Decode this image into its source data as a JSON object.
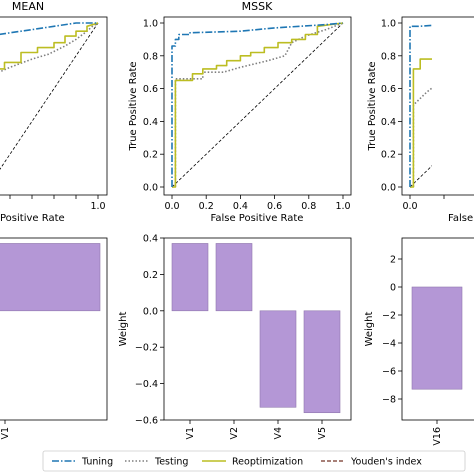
{
  "colors": {
    "tuning": "#1f77b4",
    "testing": "#7f7f7f",
    "reoptimization": "#bcbd22",
    "youden": "#8c564b",
    "bar": "#b497d6",
    "bar_edge": "#8f77ad",
    "chance": "#000000"
  },
  "legend": {
    "placement": "bottom-center",
    "entries": [
      {
        "label": "Tuning",
        "style": "dashdot",
        "color": "#1f77b4"
      },
      {
        "label": "Testing",
        "style": "dotted",
        "color": "#7f7f7f"
      },
      {
        "label": "Reoptimization",
        "style": "solid",
        "color": "#bcbd22"
      },
      {
        "label": "Youden's index",
        "style": "dashed",
        "color": "#8c564b"
      }
    ]
  },
  "chart_data": [
    {
      "type": "line",
      "title": "MEAN",
      "xlabel": "False Positive Rate",
      "ylabel": "",
      "xlim": [
        0,
        1
      ],
      "ylim": [
        0,
        1
      ],
      "xticks": [
        "0.0",
        "0.2",
        "0.4",
        "0.6",
        "0.8",
        "1.0"
      ],
      "visible_xtick_labels": [
        "1.0"
      ],
      "visible_xlabel": "Positive Rate",
      "yticks": [],
      "series": [
        {
          "name": "Tuning",
          "x": [
            0.0,
            0.01,
            0.02,
            0.06,
            0.1,
            0.2,
            0.4,
            0.6,
            0.8,
            0.9,
            1.0
          ],
          "y": [
            0.9,
            0.9,
            0.91,
            0.92,
            0.93,
            0.94,
            0.96,
            0.98,
            1.0,
            1.0,
            1.0
          ]
        },
        {
          "name": "Testing",
          "x": [
            0.0,
            0.1,
            0.2,
            0.4,
            0.55,
            0.7,
            0.8,
            0.9,
            0.95,
            1.0
          ],
          "y": [
            0.68,
            0.7,
            0.73,
            0.78,
            0.81,
            0.86,
            0.9,
            0.95,
            0.98,
            1.0
          ]
        },
        {
          "name": "Reoptimization",
          "x": [
            0.0,
            0.06,
            0.06,
            0.15,
            0.15,
            0.3,
            0.3,
            0.45,
            0.45,
            0.6,
            0.6,
            0.7,
            0.7,
            0.8,
            0.8,
            0.9,
            0.9,
            1.0
          ],
          "y": [
            0.7,
            0.7,
            0.72,
            0.72,
            0.76,
            0.76,
            0.82,
            0.82,
            0.85,
            0.85,
            0.88,
            0.88,
            0.92,
            0.92,
            0.95,
            0.95,
            0.98,
            1.0
          ]
        },
        {
          "name": "Chance",
          "x": [
            0,
            1
          ],
          "y": [
            0,
            1
          ]
        }
      ]
    },
    {
      "type": "line",
      "title": "MSSK",
      "xlabel": "False Positive Rate",
      "ylabel": "True Positive Rate",
      "xlim": [
        0,
        1
      ],
      "ylim": [
        0,
        1
      ],
      "xticks": [
        "0.0",
        "0.2",
        "0.4",
        "0.6",
        "0.8",
        "1.0"
      ],
      "yticks": [
        "0.0",
        "0.2",
        "0.4",
        "0.6",
        "0.8",
        "1.0"
      ],
      "series": [
        {
          "name": "Tuning",
          "x": [
            0.0,
            0.0,
            0.02,
            0.02,
            0.04,
            0.04,
            0.1,
            0.1,
            0.4,
            0.6,
            0.9,
            1.0
          ],
          "y": [
            0.0,
            0.86,
            0.86,
            0.9,
            0.9,
            0.93,
            0.93,
            0.94,
            0.95,
            0.97,
            0.99,
            1.0
          ]
        },
        {
          "name": "Testing",
          "x": [
            0.0,
            0.02,
            0.02,
            0.18,
            0.18,
            0.3,
            0.4,
            0.48,
            0.56,
            0.66,
            0.7,
            0.78,
            0.9,
            1.0
          ],
          "y": [
            0.0,
            0.0,
            0.66,
            0.66,
            0.7,
            0.7,
            0.73,
            0.75,
            0.77,
            0.8,
            0.88,
            0.92,
            0.96,
            1.0
          ]
        },
        {
          "name": "Reoptimization",
          "x": [
            0.0,
            0.02,
            0.02,
            0.12,
            0.12,
            0.18,
            0.18,
            0.26,
            0.26,
            0.32,
            0.32,
            0.4,
            0.4,
            0.46,
            0.46,
            0.54,
            0.54,
            0.62,
            0.62,
            0.7,
            0.7,
            0.78,
            0.78,
            0.85,
            0.85,
            1.0
          ],
          "y": [
            0.0,
            0.0,
            0.65,
            0.65,
            0.69,
            0.69,
            0.72,
            0.72,
            0.74,
            0.74,
            0.77,
            0.77,
            0.8,
            0.8,
            0.82,
            0.82,
            0.85,
            0.85,
            0.88,
            0.88,
            0.9,
            0.9,
            0.93,
            0.93,
            0.98,
            1.0
          ]
        },
        {
          "name": "Chance",
          "x": [
            0,
            1
          ],
          "y": [
            0,
            1
          ]
        }
      ]
    },
    {
      "type": "line",
      "title": "",
      "xlabel": "False Positive Rate",
      "ylabel": "True Positive Rate",
      "xlim": [
        0,
        1
      ],
      "ylim": [
        0,
        1
      ],
      "xticks": [
        "0.0",
        "0.2",
        "0.4",
        "0.6",
        "0.8",
        "1.0"
      ],
      "visible_xtick_labels": [
        "0.0"
      ],
      "visible_xlabel": "False",
      "yticks": [
        "0.0",
        "0.2",
        "0.4",
        "0.6",
        "0.8",
        "1.0"
      ],
      "series": [
        {
          "name": "Tuning",
          "x": [
            0.0,
            0.0,
            0.05,
            0.2,
            0.4
          ],
          "y": [
            0.0,
            0.98,
            0.98,
            0.99,
            1.0
          ]
        },
        {
          "name": "Testing",
          "x": [
            0.0,
            0.02,
            0.02,
            0.1,
            0.2,
            0.3,
            0.4
          ],
          "y": [
            0.0,
            0.0,
            0.5,
            0.58,
            0.66,
            0.72,
            0.78
          ]
        },
        {
          "name": "Reoptimization",
          "x": [
            0.0,
            0.02,
            0.02,
            0.06,
            0.06,
            0.15,
            0.15,
            0.25,
            0.25,
            0.4
          ],
          "y": [
            0.0,
            0.0,
            0.72,
            0.72,
            0.78,
            0.78,
            0.84,
            0.84,
            0.88,
            0.88
          ]
        },
        {
          "name": "Chance",
          "x": [
            0,
            1
          ],
          "y": [
            0,
            1
          ]
        }
      ]
    },
    {
      "type": "bar",
      "title": "",
      "categories": [
        "V1"
      ],
      "values": [
        0.37
      ],
      "ylabel": "",
      "ylim": [
        -0.6,
        0.4
      ],
      "yticks": []
    },
    {
      "type": "bar",
      "title": "",
      "categories": [
        "V1",
        "V2",
        "V4",
        "V5"
      ],
      "values": [
        0.37,
        0.37,
        -0.53,
        -0.56
      ],
      "ylabel": "Weight",
      "ylim": [
        -0.6,
        0.4
      ],
      "yticks": [
        "0.4",
        "0.2",
        "0.0",
        "−0.2",
        "−0.4",
        "−0.6"
      ]
    },
    {
      "type": "bar",
      "title": "",
      "categories": [
        "V16"
      ],
      "values": [
        -7.3
      ],
      "ylabel": "Weight",
      "ylim": [
        -9.5,
        3.5
      ],
      "yticks": [
        "2",
        "0",
        "−2",
        "−4",
        "−6",
        "−8"
      ]
    }
  ]
}
